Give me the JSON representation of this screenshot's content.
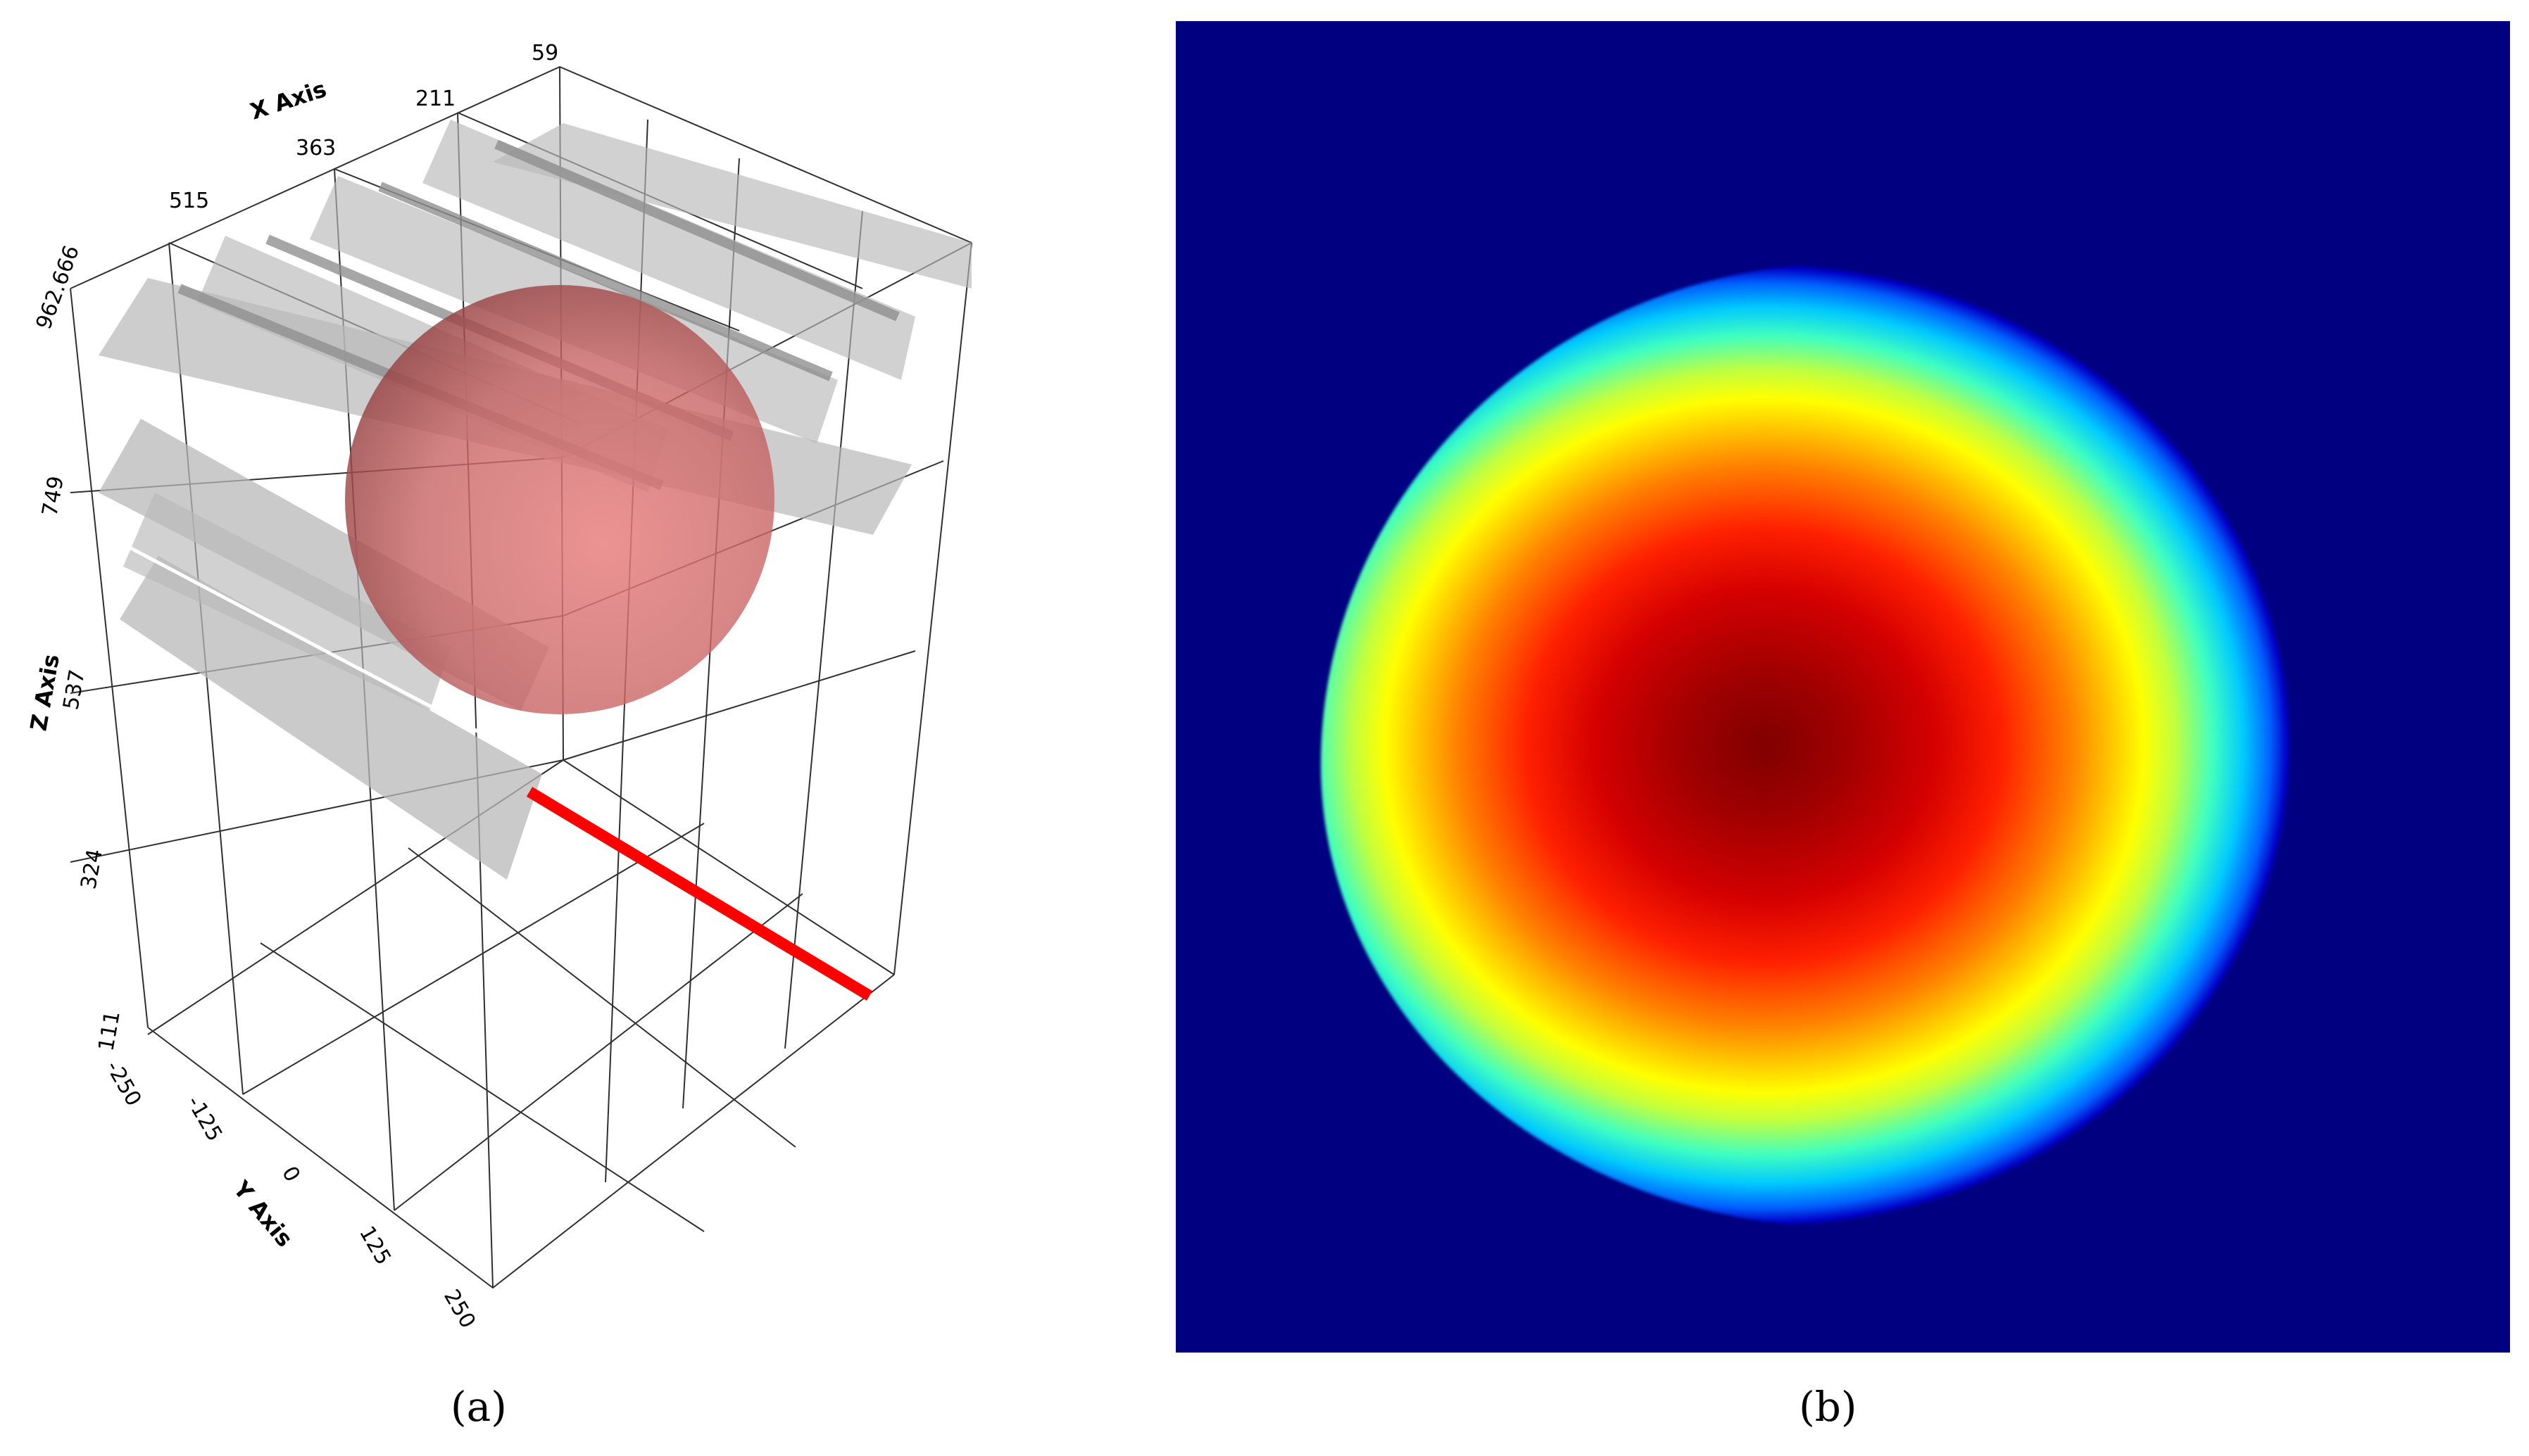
{
  "panel_a": {
    "x_axis": {
      "label": "X Axis",
      "ticks": [
        "515",
        "363",
        "211",
        "59"
      ]
    },
    "y_axis": {
      "label": "Y Axis",
      "ticks": [
        "-250",
        "-125",
        "0",
        "125",
        "250"
      ]
    },
    "z_axis": {
      "label": "Z Axis",
      "ticks": [
        "962.666",
        "749",
        "537",
        "324",
        "111"
      ]
    },
    "colors": {
      "planes": "#b8b8b8",
      "sphere": "#c86464",
      "line": "#ff0000"
    },
    "caption": "(a)"
  },
  "panel_b": {
    "colormap": "jet",
    "colors": {
      "background": "#000080",
      "center": "#800000"
    },
    "caption": "(b)"
  }
}
